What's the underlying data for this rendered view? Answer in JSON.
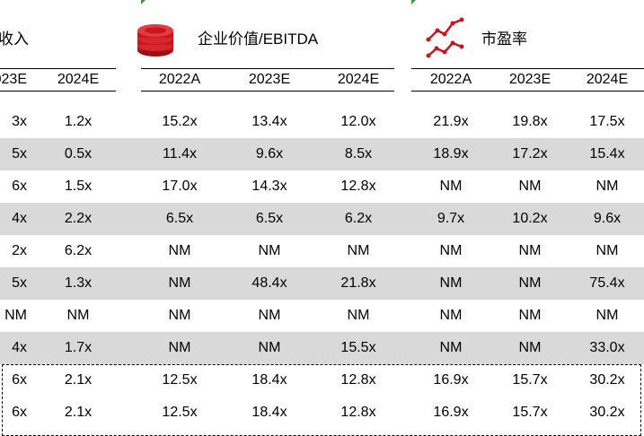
{
  "sections": {
    "revenue_title": "收入",
    "ev_ebitda_title": "企业价值/EBITDA",
    "pe_title": "市盈率"
  },
  "headers": {
    "rev": [
      "023E",
      "2024E"
    ],
    "ev": [
      "2022A",
      "2023E",
      "2024E"
    ],
    "pe": [
      "2022A",
      "2023E",
      "2024E"
    ]
  },
  "icons": {
    "ev": "coin-stack-icon",
    "pe": "line-chart-icon"
  },
  "colors": {
    "accent": "#c8161d",
    "shade": "#d9d9d9"
  },
  "rows": [
    [
      "3x",
      "1.2x",
      "15.2x",
      "13.4x",
      "12.0x",
      "21.9x",
      "19.8x",
      "17.5x"
    ],
    [
      "5x",
      "0.5x",
      "11.4x",
      "9.6x",
      "8.5x",
      "18.9x",
      "17.2x",
      "15.4x"
    ],
    [
      "6x",
      "1.5x",
      "17.0x",
      "14.3x",
      "12.8x",
      "NM",
      "NM",
      "NM"
    ],
    [
      "4x",
      "2.2x",
      "6.5x",
      "6.5x",
      "6.2x",
      "9.7x",
      "10.2x",
      "9.6x"
    ],
    [
      "2x",
      "6.2x",
      "NM",
      "NM",
      "NM",
      "NM",
      "NM",
      "NM"
    ],
    [
      "5x",
      "1.3x",
      "NM",
      "48.4x",
      "21.8x",
      "NM",
      "NM",
      "75.4x"
    ],
    [
      "NM",
      "NM",
      "NM",
      "NM",
      "NM",
      "NM",
      "NM",
      "NM"
    ],
    [
      "4x",
      "1.7x",
      "NM",
      "NM",
      "15.5x",
      "NM",
      "NM",
      "33.0x"
    ],
    [
      "6x",
      "2.1x",
      "12.5x",
      "18.4x",
      "12.8x",
      "16.9x",
      "15.7x",
      "30.2x"
    ],
    [
      "6x",
      "2.1x",
      "12.5x",
      "18.4x",
      "12.8x",
      "16.9x",
      "15.7x",
      "30.2x"
    ]
  ]
}
